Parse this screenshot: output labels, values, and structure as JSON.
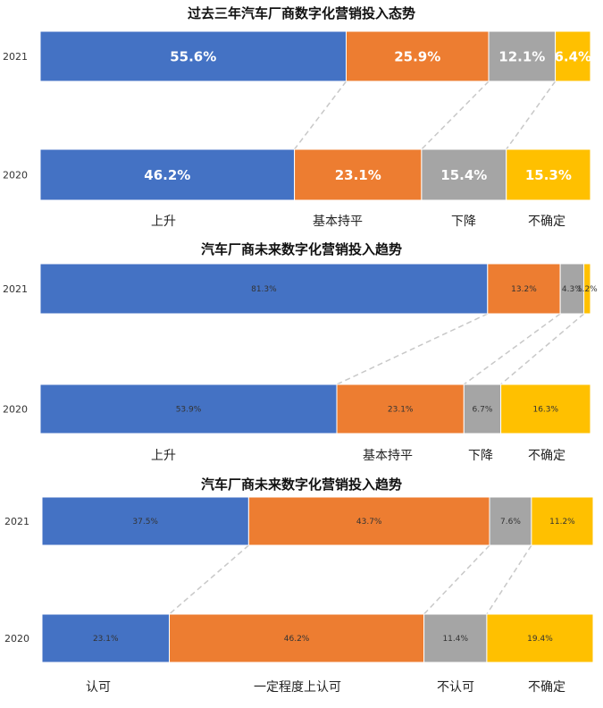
{
  "chart_data": [
    {
      "type": "bar",
      "title": "过去三年汽车厂商数字化营销投入态势",
      "categories": [
        "2021",
        "2020"
      ],
      "series": [
        {
          "name": "上升",
          "color": "#4472c4",
          "values": [
            55.6,
            46.2
          ],
          "labels": [
            "55.6%",
            "46.2%"
          ]
        },
        {
          "name": "基本持平",
          "color": "#ed7d31",
          "values": [
            25.9,
            23.1
          ],
          "labels": [
            "25.9%",
            "23.1%"
          ]
        },
        {
          "name": "下降",
          "color": "#a5a5a5",
          "values": [
            12.1,
            15.4
          ],
          "labels": [
            "12.1%",
            "15.4%"
          ]
        },
        {
          "name": "不确定",
          "color": "#ffc000",
          "values": [
            6.4,
            15.3
          ],
          "labels": [
            "6.4%",
            "15.3%"
          ]
        }
      ],
      "label_size": "large"
    },
    {
      "type": "bar",
      "title": "汽车厂商未来数字化营销投入趋势",
      "categories": [
        "2021",
        "2020"
      ],
      "series": [
        {
          "name": "上升",
          "color": "#4472c4",
          "values": [
            81.3,
            53.9
          ],
          "labels": [
            "81.3%",
            "53.9%"
          ]
        },
        {
          "name": "基本持平",
          "color": "#ed7d31",
          "values": [
            13.2,
            23.1
          ],
          "labels": [
            "13.2%",
            "23.1%"
          ]
        },
        {
          "name": "下降",
          "color": "#a5a5a5",
          "values": [
            4.3,
            6.7
          ],
          "labels": [
            "4.3%",
            "6.7%"
          ]
        },
        {
          "name": "不确定",
          "color": "#ffc000",
          "values": [
            1.2,
            16.3
          ],
          "labels": [
            "1.2%",
            "16.3%"
          ]
        }
      ],
      "label_size": "small"
    },
    {
      "type": "bar",
      "title": "汽车厂商未来数字化营销投入趋势",
      "categories": [
        "2021",
        "2020"
      ],
      "series": [
        {
          "name": "认可",
          "color": "#4472c4",
          "values": [
            37.5,
            23.1
          ],
          "labels": [
            "37.5%",
            "23.1%"
          ]
        },
        {
          "name": "一定程度上认可",
          "color": "#ed7d31",
          "values": [
            43.7,
            46.2
          ],
          "labels": [
            "43.7%",
            "46.2%"
          ]
        },
        {
          "name": "不认可",
          "color": "#a5a5a5",
          "values": [
            7.6,
            11.4
          ],
          "labels": [
            "7.6%",
            "11.4%"
          ]
        },
        {
          "name": "不确定",
          "color": "#ffc000",
          "values": [
            11.2,
            19.4
          ],
          "labels": [
            "11.2%",
            "19.4%"
          ]
        }
      ],
      "label_size": "small"
    }
  ]
}
